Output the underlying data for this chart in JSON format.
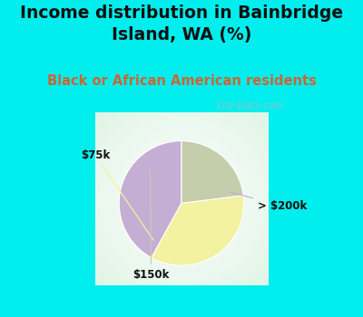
{
  "title": "Income distribution in Bainbridge\nIsland, WA (%)",
  "subtitle": "Black or African American residents",
  "slices": [
    42,
    35,
    23
  ],
  "slice_order": [
    "> $200k",
    "$75k",
    "$150k"
  ],
  "colors": [
    "#c4aed4",
    "#f2f2a0",
    "#c5ceaa"
  ],
  "startangle": 90,
  "title_fontsize": 13.5,
  "subtitle_fontsize": 10.5,
  "subtitle_color": "#cc6633",
  "title_bg_color": "#00eeee",
  "watermark": "City-Data.com",
  "watermark_color": "#b0b8c8",
  "border_color": "#00eeee",
  "border_width": 7
}
